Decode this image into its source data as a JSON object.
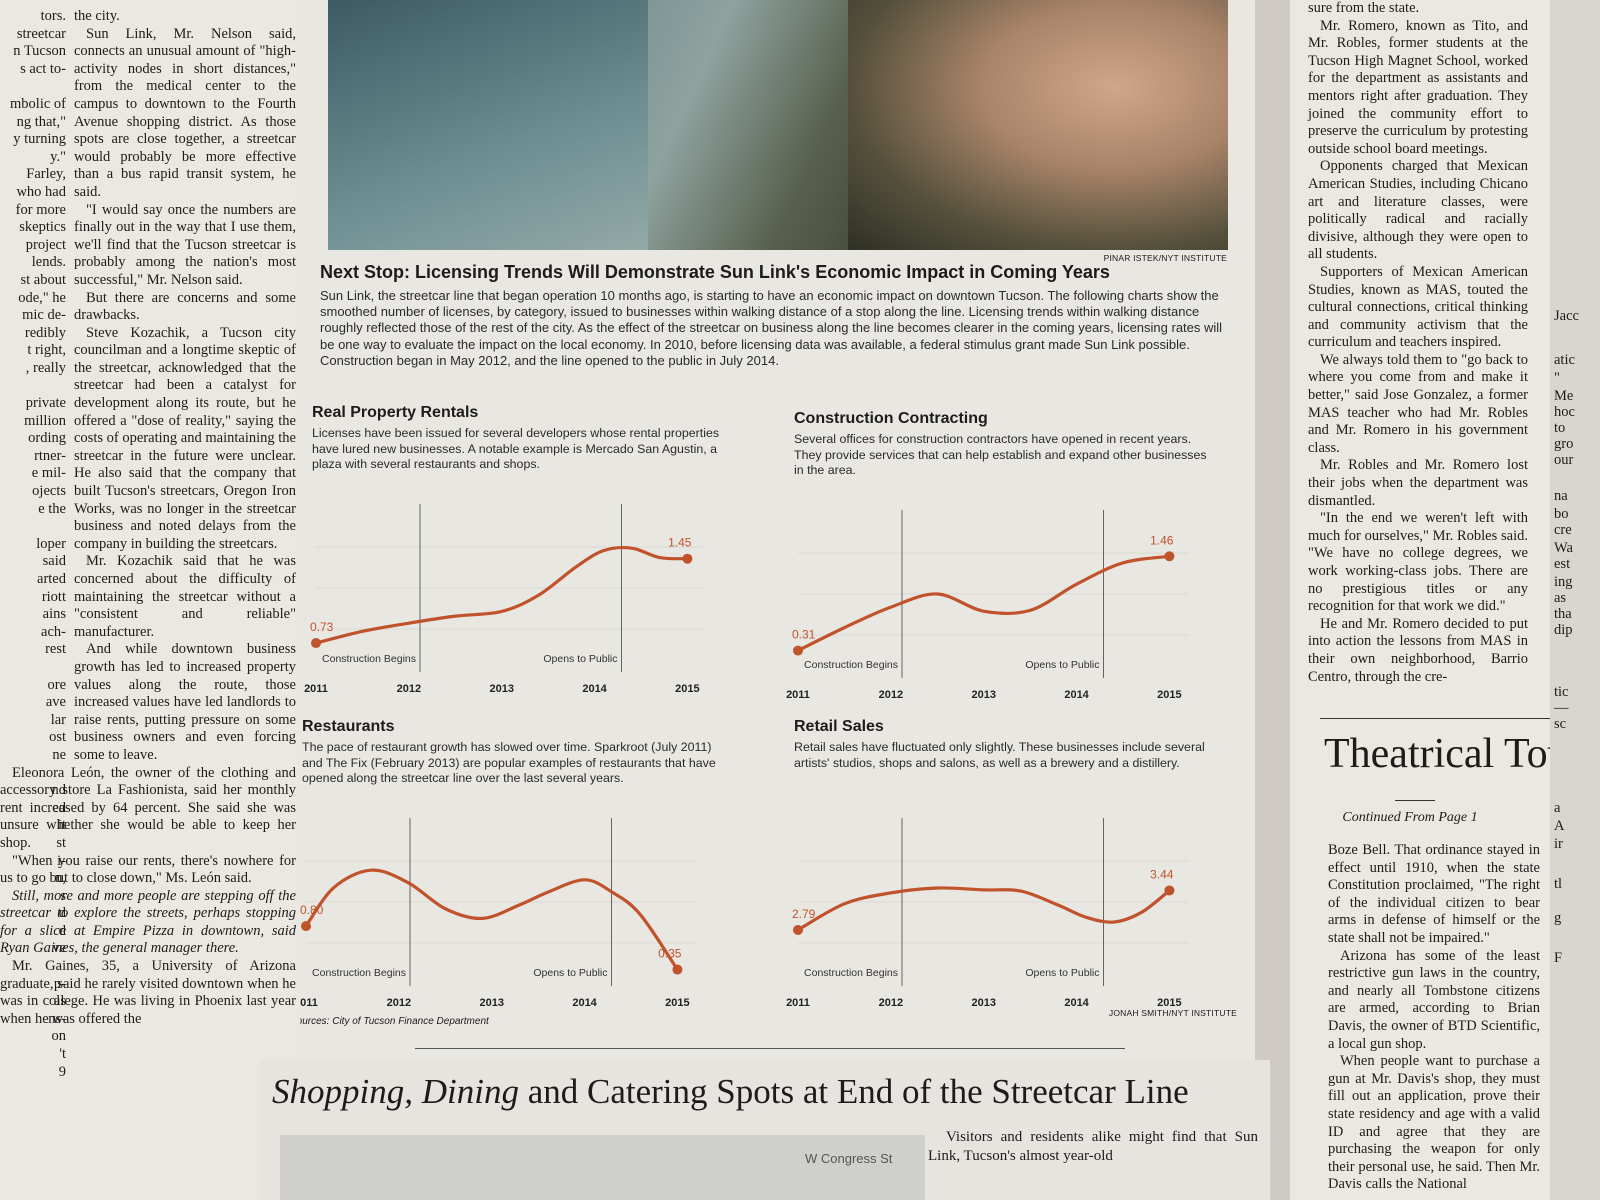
{
  "left_column": {
    "fragments": [
      "tors.",
      "streetcar",
      "n Tucson",
      "s act to-",
      "",
      "mbolic of",
      "ng that,\"",
      "y turning",
      "y.\"",
      "Farley,",
      "who had",
      "for more",
      "skeptics",
      "project",
      "lends.",
      "st about",
      "ode,\" he",
      "mic de-",
      "redibly",
      "t right,",
      ", really",
      "",
      "private",
      "million",
      "ording",
      "rtner-",
      "e mil-",
      "ojects",
      "e the",
      "",
      "loper",
      "said",
      "arted",
      "riott",
      "ains",
      "ach-",
      "rest",
      "",
      "ore",
      "ave",
      "lar",
      "ost",
      "ne",
      "",
      "nd",
      "ed",
      "it",
      "st",
      "i-",
      "n,",
      "s",
      "d",
      "d",
      "ve",
      "",
      "p-",
      "as",
      "ns-",
      "on",
      "'t",
      "9"
    ],
    "paragraphs": [
      "the city.",
      "Sun Link, Mr. Nelson said, connects an unusual amount of \"high-activity nodes in short distances,\" from the medical center to the campus to downtown to the Fourth Avenue shopping district. As those spots are close together, a streetcar would probably be more effective than a bus rapid transit system, he said.",
      "\"I would say once the numbers are finally out in the way that I use them, we'll find that the Tucson streetcar is probably among the nation's most successful,\" Mr. Nelson said.",
      "But there are concerns and some drawbacks.",
      "Steve Kozachik, a Tucson city councilman and a longtime skeptic of the streetcar, acknowledged that the streetcar had been a catalyst for development along its route, but he offered a \"dose of reality,\" saying the costs of operating and maintaining the streetcar in the future were unclear. He also said that the company that built Tucson's streetcars, Oregon Iron Works, was no longer in the streetcar business and noted delays from the company in building the streetcars.",
      "Mr. Kozachik said that he was concerned about the difficulty of maintaining the streetcar without a \"consistent and reliable\" manufacturer.",
      "And while downtown business growth has led to increased property values along the route, those increased values have led landlords to raise rents, putting pressure on some business owners and even forcing some to leave.",
      "Eleonora León, the owner of the clothing and accessory store La Fashionista, said her monthly rent increased by 64 percent. She said she was unsure whether she would be able to keep her shop.",
      "\"When you raise our rents, there's nowhere for us to go but to close down,\" Ms. León said.",
      "Still, more and more people are stepping off the streetcar to explore the streets, perhaps stopping for a slice at Empire Pizza in downtown, said Ryan Gaines, the general manager there.",
      "Mr. Gaines, 35, a University of Arizona graduate, said he rarely visited downtown when he was in college. He was living in Phoenix last year when he was offered the"
    ]
  },
  "graphic": {
    "photo_credit": "PINAR ISTEK/NYT INSTITUTE",
    "headline": "Next Stop: Licensing Trends Will Demonstrate Sun Link's Economic Impact in Coming Years",
    "intro": "Sun Link, the streetcar line that began operation 10 months ago, is starting to have an economic impact on downtown Tucson. The following charts show the smoothed number of licenses, by category, issued to businesses within walking distance of a stop along the line. Licensing trends within walking distance roughly reflected those of the rest of the city. As the effect of the streetcar on business along the line becomes clearer in the coming years, licensing rates will be one way to evaluate the impact on the local economy. In 2010, before licensing data was available, a federal stimulus grant made Sun Link possible. Construction began in May 2012, and the line opened to the public in July 2014.",
    "sources": "Sources: City of Tucson Finance Department",
    "chart_credit": "JONAH SMITH/NYT INSTITUTE",
    "line_color": "#c0532b"
  },
  "chart_data": [
    {
      "type": "line",
      "title": "Real Property Rentals",
      "subtitle": "Licenses have been issued for several developers whose rental properties have lured new businesses. A notable example is Mercado San Agustin, a plaza with several restaurants and shops.",
      "x_ticks": [
        "2011",
        "2012",
        "2013",
        "2014",
        "2015"
      ],
      "xlim": [
        2011,
        2015.2
      ],
      "ylim": [
        0.5,
        1.9
      ],
      "x": [
        2011.0,
        2011.5,
        2012.0,
        2012.5,
        2013.0,
        2013.4,
        2013.8,
        2014.1,
        2014.4,
        2014.7,
        2015.0
      ],
      "y": [
        0.73,
        0.83,
        0.9,
        0.96,
        1.0,
        1.14,
        1.38,
        1.52,
        1.54,
        1.46,
        1.45
      ],
      "start_label": "0.73",
      "end_label": "1.45",
      "annotations": [
        {
          "x": 2012.12,
          "text": "Construction Begins"
        },
        {
          "x": 2014.29,
          "text": "Opens to Public"
        }
      ]
    },
    {
      "type": "line",
      "title": "Construction Contracting",
      "subtitle": "Several offices for construction contractors have opened in recent years. They provide services that can help establish and expand other businesses in the area.",
      "x_ticks": [
        "2011",
        "2012",
        "2013",
        "2014",
        "2015"
      ],
      "xlim": [
        2011,
        2015.2
      ],
      "ylim": [
        0.0,
        2.0
      ],
      "x": [
        2011.0,
        2011.5,
        2012.0,
        2012.5,
        2013.0,
        2013.5,
        2014.0,
        2014.5,
        2015.0
      ],
      "y": [
        0.31,
        0.59,
        0.84,
        1.0,
        0.79,
        0.8,
        1.12,
        1.38,
        1.46
      ],
      "start_label": "0.31",
      "end_label": "1.46",
      "annotations": [
        {
          "x": 2012.12,
          "text": "Construction Begins"
        },
        {
          "x": 2014.29,
          "text": "Opens to Public"
        }
      ]
    },
    {
      "type": "line",
      "title": "Restaurants",
      "subtitle": "The pace of restaurant growth has slowed over time. Sparkroot (July 2011) and The Fix (February 2013) are popular examples of restaurants that have opened along the streetcar line over the last several years.",
      "x_ticks": [
        "2011",
        "2012",
        "2013",
        "2014",
        "2015"
      ],
      "xlim": [
        2011,
        2015.2
      ],
      "ylim": [
        0.2,
        1.9
      ],
      "x": [
        2011.0,
        2011.3,
        2011.7,
        2012.1,
        2012.5,
        2012.9,
        2013.3,
        2013.6,
        2014.0,
        2014.3,
        2014.6,
        2015.0
      ],
      "y": [
        0.8,
        1.2,
        1.38,
        1.25,
        0.98,
        0.88,
        1.02,
        1.15,
        1.28,
        1.15,
        0.92,
        0.35
      ],
      "start_label": "0.80",
      "end_label": "0.35",
      "annotations": [
        {
          "x": 2012.12,
          "text": "Construction Begins"
        },
        {
          "x": 2014.29,
          "text": "Opens to Public"
        }
      ]
    },
    {
      "type": "line",
      "title": "Retail Sales",
      "subtitle": "Retail sales have fluctuated only slightly. These businesses include several artists' studios, shops and salons, as well as a brewery and a distillery.",
      "x_ticks": [
        "2011",
        "2012",
        "2013",
        "2014",
        "2015"
      ],
      "xlim": [
        2011,
        2015.2
      ],
      "ylim": [
        1.9,
        4.6
      ],
      "x": [
        2011.0,
        2011.5,
        2012.0,
        2012.5,
        2013.0,
        2013.4,
        2013.8,
        2014.1,
        2014.4,
        2014.7,
        2015.0
      ],
      "y": [
        2.79,
        3.22,
        3.4,
        3.48,
        3.45,
        3.43,
        3.2,
        3.0,
        2.92,
        3.08,
        3.44
      ],
      "start_label": "2.79",
      "end_label": "3.44",
      "annotations": [
        {
          "x": 2012.12,
          "text": "Construction Begins"
        },
        {
          "x": 2014.29,
          "text": "Opens to Public"
        }
      ]
    }
  ],
  "bottom": {
    "headline_italic": "Shopping, Dining",
    "headline_rest": " and Catering Spots at End of the Streetcar Line",
    "map_label": "W Congress St",
    "text": "Visitors and residents alike might find that Sun Link, Tucson's almost year-old"
  },
  "right_column": {
    "paragraphs_top": [
      "sure from the state.",
      "Mr. Romero, known as Tito, and Mr. Robles, former students at the Tucson High Magnet School, worked for the department as assistants and mentors right after graduation. They joined the community effort to preserve the curriculum by protesting outside school board meetings.",
      "Opponents charged that Mexican American Studies, including Chicano art and literature classes, were politically radical and racially divisive, although they were open to all students.",
      "Supporters of Mexican American Studies, known as MAS, touted the cultural connections, critical thinking and community activism that the curriculum and teachers inspired.",
      "We always told them to \"go back to where you come from and make it better,\" said Jose Gonzalez, a former MAS teacher who had Mr. Robles and Mr. Romero in his government class.",
      "Mr. Robles and Mr. Romero lost their jobs when the department was dismantled.",
      "\"In the end we weren't left with much for ourselves,\" Mr. Robles said. \"We have no college degrees, we work working-class jobs. There are no prestigious titles or any recognition for that work we did.\"",
      "He and Mr. Romero decided to put into action the lessons from MAS in their own neighborhood, Barrio Centro, through the cre-"
    ],
    "section_head": "Theatrical Tow",
    "continued": "Continued From Page 1",
    "paragraphs_bottom": [
      "Boze Bell. That ordinance stayed in effect until 1910, when the state Constitution proclaimed, \"The right of the individual citizen to bear arms in defense of himself or the state shall not be impaired.\"",
      "Arizona has some of the least restrictive gun laws in the country, and nearly all Tombstone citizens are armed, according to Brian Davis, the owner of BTD Scientific, a local gun shop.",
      "When people want to purchase a gun at Mr. Davis's shop, they must fill out an application, prove their state residency and age with a valid ID and agree that they are purchasing the weapon for only their personal use, he said. Then Mr. Davis calls the National"
    ]
  },
  "far_right": {
    "fragments": [
      "Jacc",
      "atic",
      "\"",
      "Me",
      "hoc",
      "to",
      "gro",
      "our",
      "na",
      "bo",
      "cre",
      "Wa",
      "est",
      "ing",
      "as",
      "tha",
      "dip",
      "tic",
      "—",
      "sc",
      "a",
      "A",
      "ir",
      "tl",
      "g",
      "F"
    ]
  }
}
